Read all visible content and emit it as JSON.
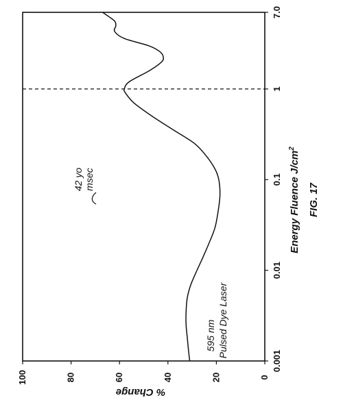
{
  "chart_data": {
    "type": "line",
    "figure_label": "FIG. 17",
    "xlabel": "Energy Fluence J/cm",
    "xlabel_sup": "2",
    "ylabel": "% Change",
    "xscale": "log",
    "xlim": [
      0.001,
      7.0
    ],
    "ylim": [
      0,
      100
    ],
    "x_tick_values": [
      0.001,
      0.01,
      0.1,
      1,
      7.0
    ],
    "x_tick_labels": [
      "0.001",
      "0.01",
      "0.1",
      "1",
      "7.0"
    ],
    "y_tick_values": [
      0,
      20,
      40,
      60,
      80,
      100
    ],
    "y_tick_labels": [
      "0",
      "20",
      "40",
      "60",
      "80",
      "100"
    ],
    "reference_line_x": 1,
    "annotations": {
      "laser_line1": "595 nm",
      "laser_line2": "Pulsed Dye Laser",
      "peak_line1": "42 yo",
      "peak_line2": "msec"
    },
    "series": [
      {
        "x": [
          0.001,
          0.0013,
          0.0018,
          0.0025,
          0.0035,
          0.005,
          0.007,
          0.01,
          0.014,
          0.02,
          0.03,
          0.05,
          0.07,
          0.1,
          0.13,
          0.18,
          0.25,
          0.35,
          0.5,
          0.7,
          0.9,
          1.0,
          1.2,
          1.6,
          2.0,
          2.3,
          2.6,
          3.0,
          3.6,
          4.3,
          5.0,
          5.6,
          6.3,
          7.0
        ],
        "y": [
          31,
          31.5,
          32,
          32.5,
          32.5,
          32,
          30.5,
          28,
          25.5,
          23,
          20.5,
          19,
          18.5,
          19,
          20.5,
          24,
          29,
          37.5,
          46.5,
          54,
          57.5,
          58,
          56,
          47.5,
          42.5,
          42,
          43.5,
          48,
          58,
          62,
          61.5,
          62,
          64.5,
          67
        ]
      }
    ]
  }
}
